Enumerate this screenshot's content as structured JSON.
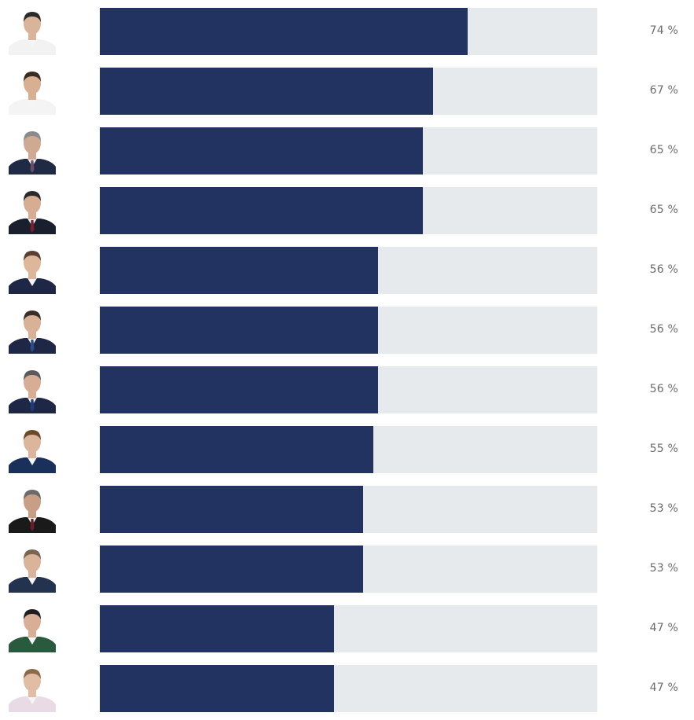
{
  "chart_data": {
    "type": "bar",
    "orientation": "horizontal",
    "unit": "%",
    "ylim": [
      0,
      100
    ],
    "legend": "none",
    "grid": false,
    "colors": {
      "bar": "#233361",
      "track": "#e7eaed",
      "label": "#6b6b6b"
    },
    "items": [
      {
        "value": 74,
        "label": "74 %",
        "avatar": "portrait-icon",
        "tone": {
          "skin": "#d9b49a",
          "hair": "#2b2b2b",
          "shirt": "#f2f2f2",
          "tie": ""
        }
      },
      {
        "value": 67,
        "label": "67 %",
        "avatar": "portrait-icon",
        "tone": {
          "skin": "#d8b091",
          "hair": "#3a2a22",
          "shirt": "#f4f4f4",
          "tie": ""
        }
      },
      {
        "value": 65,
        "label": "65 %",
        "avatar": "portrait-icon",
        "tone": {
          "skin": "#cfa992",
          "hair": "#8a8a8a",
          "shirt": "#1f2a44",
          "tie": "#6b4b6a"
        }
      },
      {
        "value": 65,
        "label": "65 %",
        "avatar": "portrait-icon",
        "tone": {
          "skin": "#d6ad92",
          "hair": "#2a2a2a",
          "shirt": "#1a1f2d",
          "tie": "#7a1f2b"
        }
      },
      {
        "value": 56,
        "label": "56 %",
        "avatar": "portrait-icon",
        "tone": {
          "skin": "#deb79b",
          "hair": "#5a4030",
          "shirt": "#1e2846",
          "tie": ""
        }
      },
      {
        "value": 56,
        "label": "56 %",
        "avatar": "portrait-icon",
        "tone": {
          "skin": "#d8b196",
          "hair": "#3b2f28",
          "shirt": "#1e2846",
          "tie": "#2c4d8a"
        }
      },
      {
        "value": 56,
        "label": "56 %",
        "avatar": "portrait-icon",
        "tone": {
          "skin": "#d7ae95",
          "hair": "#5a5a5a",
          "shirt": "#1e2846",
          "tie": "#213a7a"
        }
      },
      {
        "value": 55,
        "label": "55 %",
        "avatar": "portrait-icon",
        "tone": {
          "skin": "#dcb69c",
          "hair": "#6b4a2a",
          "shirt": "#1a2f5a",
          "tie": ""
        }
      },
      {
        "value": 53,
        "label": "53 %",
        "avatar": "portrait-icon",
        "tone": {
          "skin": "#c99e86",
          "hair": "#6a6a6a",
          "shirt": "#1a1a1a",
          "tie": "#6a1f24"
        }
      },
      {
        "value": 53,
        "label": "53 %",
        "avatar": "portrait-icon",
        "tone": {
          "skin": "#d9b39a",
          "hair": "#7a6650",
          "shirt": "#23324f",
          "tie": ""
        }
      },
      {
        "value": 47,
        "label": "47 %",
        "avatar": "portrait-icon",
        "tone": {
          "skin": "#d8ae96",
          "hair": "#1e1e1e",
          "shirt": "#2a5a3e",
          "tie": ""
        }
      },
      {
        "value": 47,
        "label": "47 %",
        "avatar": "portrait-icon",
        "tone": {
          "skin": "#e0bda4",
          "hair": "#8a6a4a",
          "shirt": "#e9dbe6",
          "tie": ""
        }
      }
    ]
  }
}
